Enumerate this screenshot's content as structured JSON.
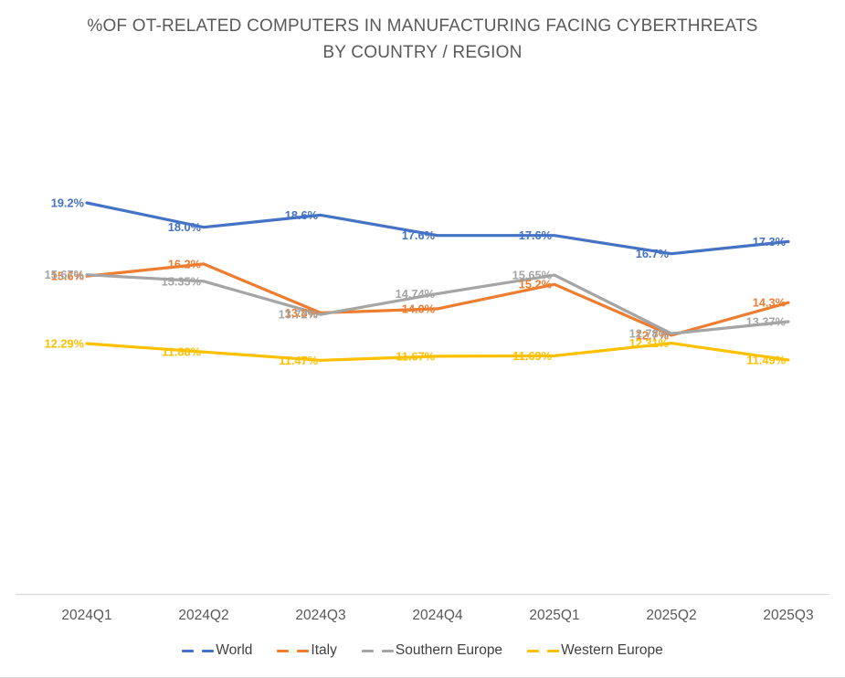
{
  "title": {
    "line1": "%OF OT-RELATED COMPUTERS IN MANUFACTURING FACING CYBERTHREATS",
    "line2": "BY COUNTRY / REGION"
  },
  "colors": {
    "title_text": "#595959",
    "axis_text": "#595959",
    "legend_text": "#404040",
    "axis_line": "#d9d9d9",
    "world": "#4472c4",
    "italy": "#ed7d31",
    "southern_europe": "#a5a5a5",
    "western_europe": "#ffc000"
  },
  "chart_data": {
    "type": "line",
    "title": "%OF OT-RELATED COMPUTERS IN MANUFACTURING FACING CYBERTHREATS BY COUNTRY / REGION",
    "categories": [
      "2024Q1",
      "2024Q2",
      "2024Q3",
      "2024Q4",
      "2025Q1",
      "2025Q2",
      "2025Q3"
    ],
    "series": [
      {
        "name": "World",
        "color": "#4472c4",
        "values": [
          19.2,
          18.0,
          18.6,
          17.6,
          17.6,
          16.7,
          17.3
        ],
        "labels": [
          "19.2%",
          "18.0%",
          "18.6%",
          "17.6%",
          "17.6%",
          "16.7%",
          "17.3%"
        ]
      },
      {
        "name": "Italy",
        "color": "#ed7d31",
        "values": [
          15.6,
          16.2,
          13.8,
          14.0,
          15.2,
          12.7,
          14.3
        ],
        "labels": [
          "15.6%",
          "16.2%",
          "13.8%",
          "14.0%",
          "15.2%",
          "12.7%",
          "14.3%"
        ]
      },
      {
        "name": "Southern Europe",
        "color": "#a5a5a5",
        "values": [
          15.67,
          15.35,
          13.72,
          14.74,
          15.65,
          12.78,
          13.37
        ],
        "labels": [
          "15.67%",
          "15.35%",
          "13.72%",
          "14.74%",
          "15.65%",
          "12.78%",
          "13.37%"
        ]
      },
      {
        "name": "Western Europe",
        "color": "#ffc000",
        "values": [
          12.29,
          11.88,
          11.47,
          11.67,
          11.69,
          12.31,
          11.49
        ],
        "labels": [
          "12.29%",
          "11.88%",
          "11.47%",
          "11.67%",
          "11.69%",
          "12.31%",
          "11.49%"
        ]
      }
    ],
    "ylim": [
      0,
      20
    ],
    "grid": false,
    "legend_position": "bottom",
    "data_labels": true,
    "y_axis_visible": false
  }
}
